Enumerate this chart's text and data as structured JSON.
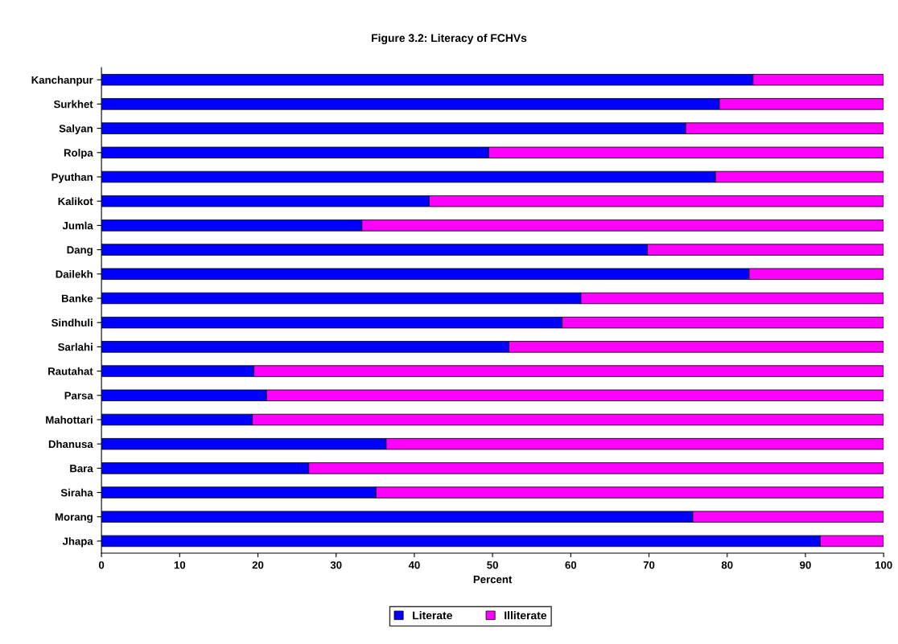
{
  "chart_data": {
    "type": "bar",
    "orientation": "horizontal",
    "stacked": true,
    "title": "Figure 3.2: Literacy of FCHVs",
    "xlabel": "Percent",
    "categories": [
      "Kanchanpur",
      "Surkhet",
      "Salyan",
      "Rolpa",
      "Pyuthan",
      "Kalikot",
      "Jumla",
      "Dang",
      "Dailekh",
      "Banke",
      "Sindhuli",
      "Sarlahi",
      "Rautahat",
      "Parsa",
      "Mahottari",
      "Dhanusa",
      "Bara",
      "Siraha",
      "Morang",
      "Jhapa"
    ],
    "series": [
      {
        "name": "Literate",
        "color": "#0000ff",
        "values": [
          83.3,
          79.0,
          74.7,
          49.5,
          78.5,
          41.9,
          33.3,
          69.8,
          82.8,
          61.3,
          58.9,
          52.1,
          19.5,
          21.1,
          19.3,
          36.4,
          26.5,
          35.1,
          75.6,
          91.9
        ]
      },
      {
        "name": "Illiterate",
        "color": "#ff00ff",
        "values": [
          16.7,
          21.0,
          25.3,
          50.5,
          21.5,
          58.1,
          66.7,
          30.2,
          17.2,
          38.7,
          41.1,
          47.9,
          80.5,
          78.9,
          80.7,
          63.6,
          73.5,
          64.9,
          24.4,
          8.1
        ]
      }
    ],
    "xlim": [
      0,
      100
    ],
    "xticks": [
      0,
      10,
      20,
      30,
      40,
      50,
      60,
      70,
      80,
      90,
      100
    ],
    "grid": false,
    "legend": "bottom"
  }
}
